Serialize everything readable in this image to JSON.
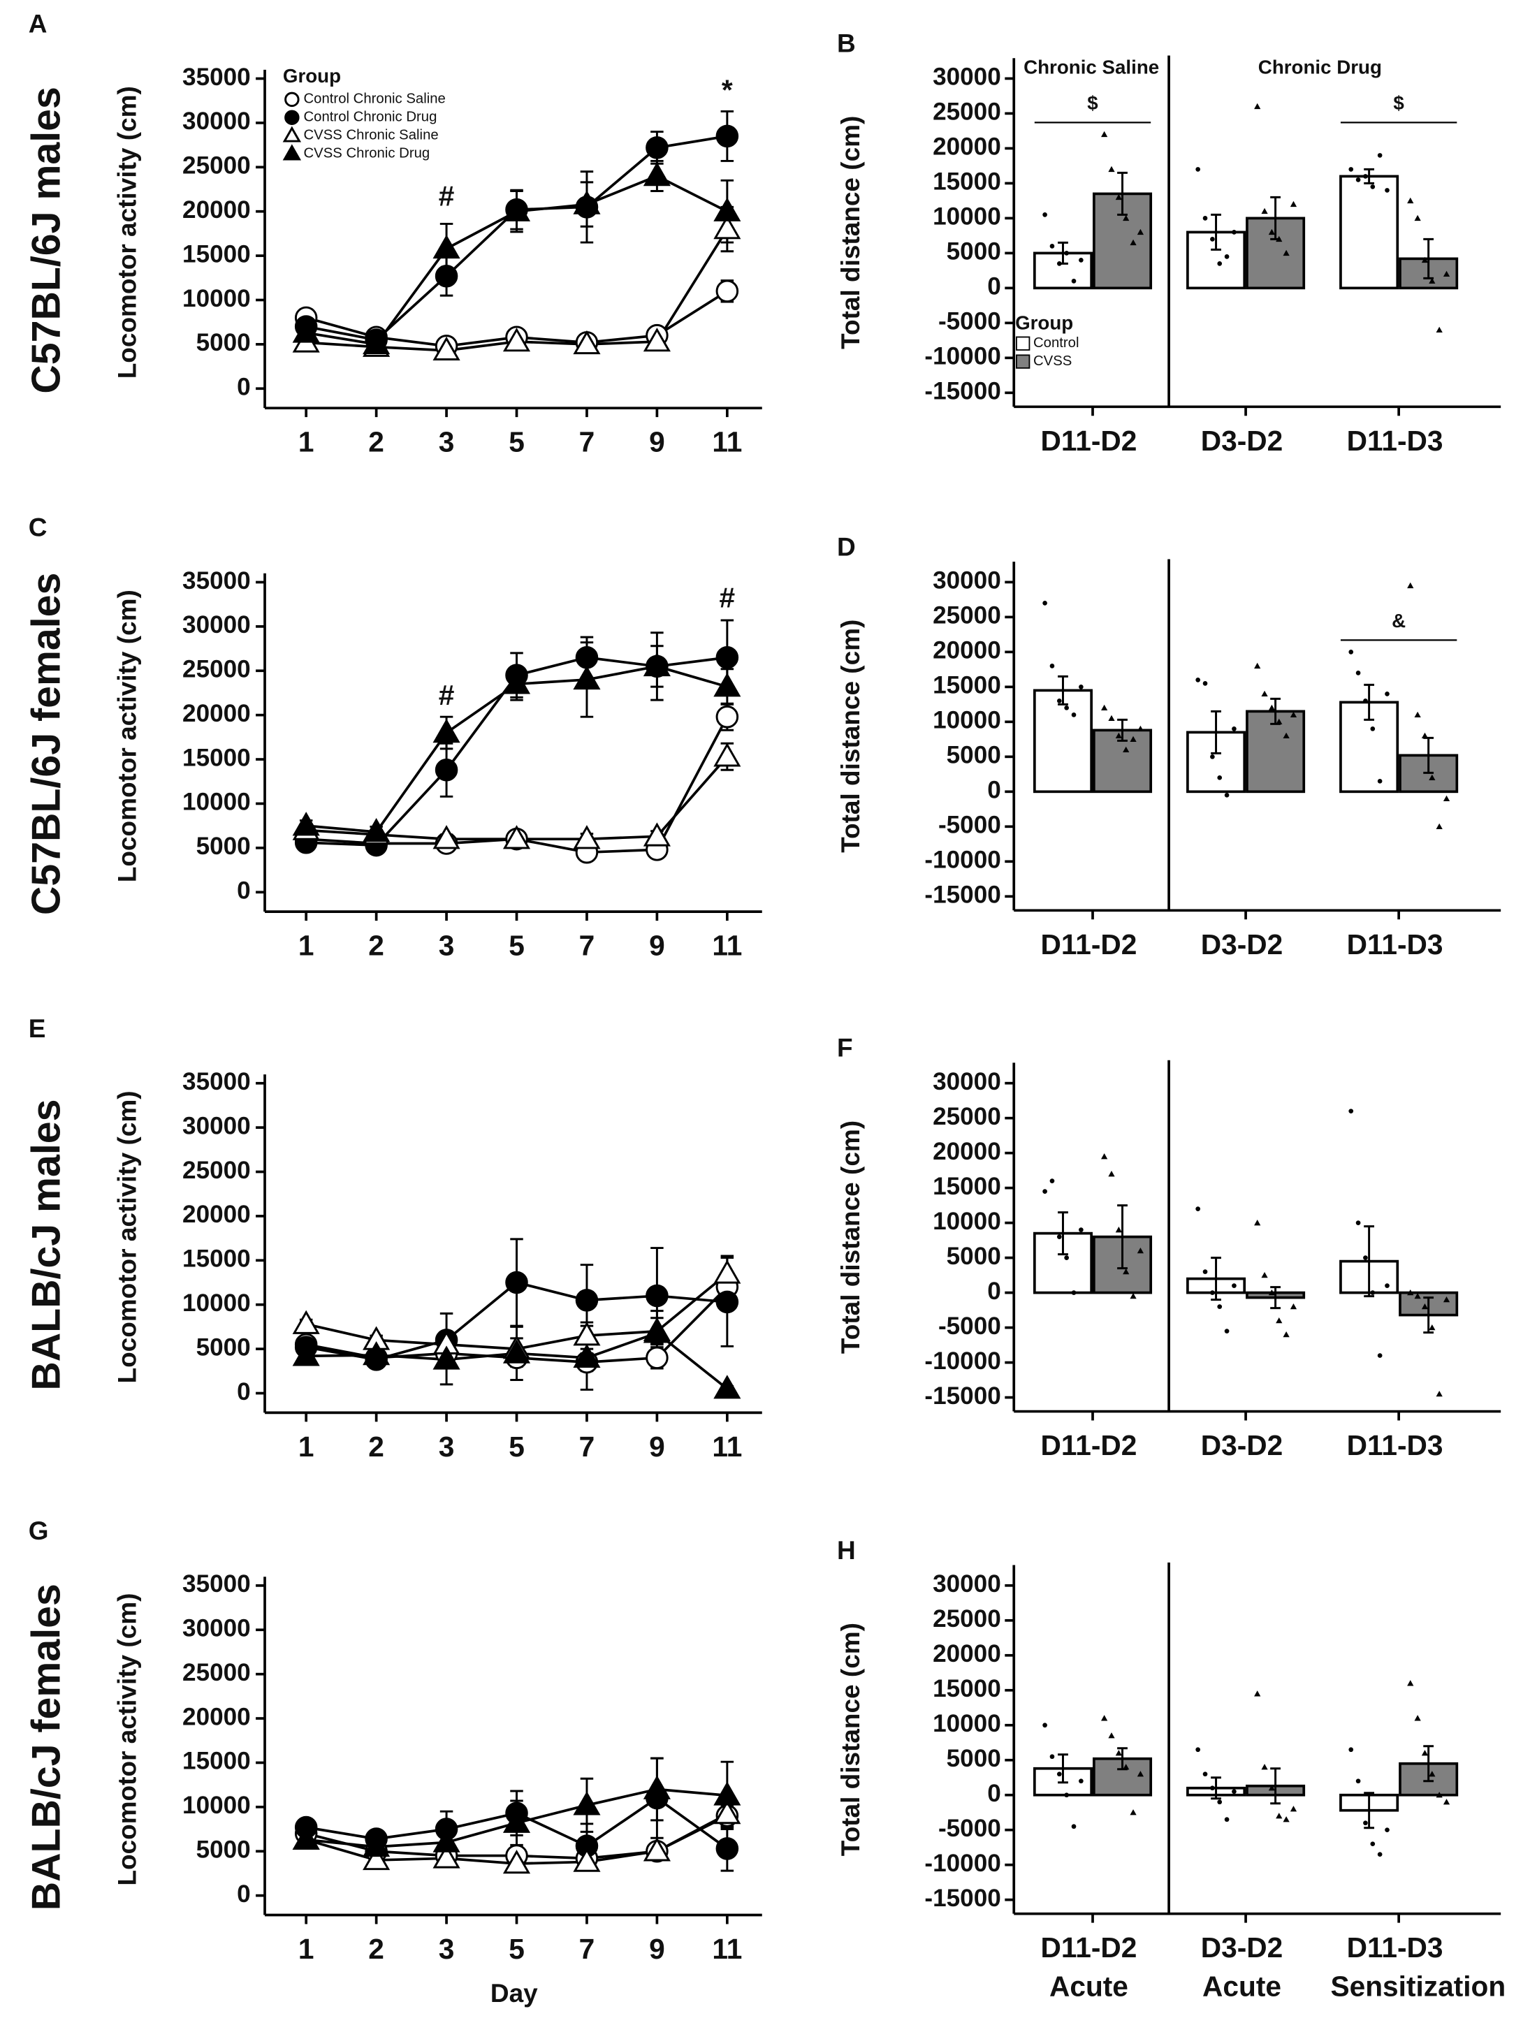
{
  "chart_data": [
    {
      "type": "line",
      "panel": "A",
      "row_label": "C57BL/6J males",
      "ylabel": "Locomotor activity (cm)",
      "categories": [
        "1",
        "2",
        "3",
        "5",
        "7",
        "9",
        "11"
      ],
      "ylim": [
        -2200,
        36000
      ],
      "yticks": [
        0,
        5000,
        10000,
        15000,
        20000,
        25000,
        30000,
        35000
      ],
      "legend": {
        "title": "Group"
      },
      "series": [
        {
          "name": "Control Chronic Saline",
          "color": "#000000",
          "marker": "circle",
          "filled": false,
          "values": [
            8000,
            5800,
            4800,
            5800,
            5200,
            6000,
            11000
          ],
          "errors": [
            600,
            500,
            500,
            700,
            600,
            700,
            1200
          ]
        },
        {
          "name": "Control Chronic Drug",
          "color": "#000000",
          "marker": "circle",
          "filled": true,
          "values": [
            7000,
            5500,
            12700,
            20200,
            20500,
            27200,
            28500
          ],
          "errors": [
            700,
            600,
            2200,
            2200,
            4000,
            1800,
            2800
          ]
        },
        {
          "name": "CVSS Chronic Saline",
          "color": "#000000",
          "marker": "triangle",
          "filled": false,
          "values": [
            5200,
            4700,
            4300,
            5300,
            5000,
            5300,
            18000
          ],
          "errors": [
            500,
            500,
            400,
            500,
            500,
            500,
            2500
          ]
        },
        {
          "name": "CVSS Chronic Drug",
          "color": "#000000",
          "marker": "triangle",
          "filled": true,
          "values": [
            6300,
            5000,
            15800,
            20000,
            20800,
            24000,
            20000
          ],
          "errors": [
            600,
            500,
            2800,
            2300,
            2500,
            1700,
            3500
          ]
        }
      ],
      "annotations": [
        {
          "text": "#",
          "category": "3",
          "y": 21500
        },
        {
          "text": "*",
          "category": "11",
          "y": 33500
        }
      ]
    },
    {
      "type": "bar",
      "panel": "B",
      "ylabel": "Total distance (cm)",
      "categories": [
        "D11-D2",
        "D3-D2",
        "D11-D3"
      ],
      "ylim": [
        -17000,
        32000
      ],
      "yticks": [
        -15000,
        -10000,
        -5000,
        0,
        5000,
        10000,
        15000,
        20000,
        25000,
        30000
      ],
      "section_labels": [
        "Chronic Saline",
        "Chronic Drug"
      ],
      "legend": {
        "title": "Group"
      },
      "series": [
        {
          "name": "Control",
          "color": "#ffffff",
          "values": [
            5000,
            8000,
            16000
          ],
          "errors": [
            1500,
            2500,
            1000
          ],
          "points": [
            [
              10500,
              6000,
              3500,
              5000,
              1000,
              4000
            ],
            [
              17000,
              10000,
              7000,
              3500,
              4500,
              8000
            ],
            [
              17000,
              15500,
              16000,
              14500,
              19000,
              14000
            ]
          ]
        },
        {
          "name": "CVSS",
          "color": "#808080",
          "values": [
            13500,
            10000,
            4200
          ],
          "errors": [
            3000,
            3000,
            2800
          ],
          "points": [
            [
              22000,
              17000,
              13000,
              10000,
              6500,
              8000
            ],
            [
              26000,
              11000,
              8000,
              7000,
              5000,
              12000
            ],
            [
              12500,
              10000,
              4000,
              1000,
              -6000,
              2000
            ]
          ]
        }
      ],
      "significance": [
        {
          "text": "$",
          "category": "D11-D2",
          "y": 23700
        },
        {
          "text": "$",
          "category": "D11-D3",
          "y": 23700
        }
      ]
    },
    {
      "type": "line",
      "panel": "C",
      "row_label": "C57BL/6J females",
      "ylabel": "Locomotor activity (cm)",
      "categories": [
        "1",
        "2",
        "3",
        "5",
        "7",
        "9",
        "11"
      ],
      "ylim": [
        -2200,
        36000
      ],
      "yticks": [
        0,
        5000,
        10000,
        15000,
        20000,
        25000,
        30000,
        35000
      ],
      "series": [
        {
          "name": "Control Chronic Saline",
          "color": "#000000",
          "marker": "circle",
          "filled": false,
          "values": [
            6000,
            5500,
            5500,
            6000,
            4500,
            4800,
            19800
          ],
          "errors": [
            500,
            500,
            500,
            600,
            600,
            500,
            1500
          ]
        },
        {
          "name": "Control Chronic Drug",
          "color": "#000000",
          "marker": "circle",
          "filled": true,
          "values": [
            5600,
            5300,
            13800,
            24500,
            26500,
            25500,
            26500
          ],
          "errors": [
            500,
            500,
            3000,
            2500,
            2300,
            3800,
            4200
          ]
        },
        {
          "name": "CVSS Chronic Saline",
          "color": "#000000",
          "marker": "triangle",
          "filled": false,
          "values": [
            7000,
            6500,
            6000,
            6000,
            6000,
            6300,
            15300
          ],
          "errors": [
            500,
            500,
            500,
            600,
            600,
            600,
            1500
          ]
        },
        {
          "name": "CVSS Chronic Drug",
          "color": "#000000",
          "marker": "triangle",
          "filled": true,
          "values": [
            7500,
            6800,
            18000,
            23500,
            24000,
            25500,
            23200
          ],
          "errors": [
            600,
            600,
            1800,
            1800,
            4200,
            2300,
            2000
          ]
        }
      ],
      "annotations": [
        {
          "text": "#",
          "category": "3",
          "y": 22000
        },
        {
          "text": "#",
          "category": "11",
          "y": 33000
        }
      ]
    },
    {
      "type": "bar",
      "panel": "D",
      "ylabel": "Total distance (cm)",
      "categories": [
        "D11-D2",
        "D3-D2",
        "D11-D3"
      ],
      "ylim": [
        -17000,
        32000
      ],
      "yticks": [
        -15000,
        -10000,
        -5000,
        0,
        5000,
        10000,
        15000,
        20000,
        25000,
        30000
      ],
      "series": [
        {
          "name": "Control",
          "color": "#ffffff",
          "values": [
            14500,
            8500,
            12800
          ],
          "errors": [
            2000,
            3000,
            2500
          ],
          "points": [
            [
              27000,
              18000,
              13000,
              12000,
              11000,
              15000
            ],
            [
              16000,
              15500,
              5000,
              2000,
              -500,
              9000
            ],
            [
              20000,
              17000,
              13000,
              9000,
              1500,
              14000
            ]
          ]
        },
        {
          "name": "CVSS",
          "color": "#808080",
          "values": [
            8800,
            11500,
            5200
          ],
          "errors": [
            1500,
            1800,
            2500
          ],
          "points": [
            [
              12000,
              10500,
              8000,
              6000,
              7500,
              9000
            ],
            [
              18000,
              14000,
              12000,
              10000,
              8000,
              11000
            ],
            [
              29500,
              11000,
              8000,
              2000,
              -5000,
              -1000
            ]
          ]
        }
      ],
      "significance": [
        {
          "text": "&",
          "category": "D11-D3",
          "y": 21700
        }
      ]
    },
    {
      "type": "line",
      "panel": "E",
      "row_label": "BALB/cJ males",
      "ylabel": "Locomotor activity (cm)",
      "categories": [
        "1",
        "2",
        "3",
        "5",
        "7",
        "9",
        "11"
      ],
      "ylim": [
        -2200,
        36000
      ],
      "yticks": [
        0,
        5000,
        10000,
        15000,
        20000,
        25000,
        30000,
        35000
      ],
      "series": [
        {
          "name": "Control Chronic Saline",
          "color": "#000000",
          "marker": "circle",
          "filled": false,
          "values": [
            5500,
            4000,
            4500,
            4000,
            3500,
            4000,
            12000
          ],
          "errors": [
            600,
            500,
            600,
            1000,
            1000,
            1200,
            1500
          ]
        },
        {
          "name": "Control Chronic Drug",
          "color": "#000000",
          "marker": "circle",
          "filled": true,
          "values": [
            5200,
            3800,
            6000,
            12500,
            10500,
            11000,
            10300
          ],
          "errors": [
            600,
            500,
            3000,
            4900,
            4000,
            5400,
            5000
          ]
        },
        {
          "name": "CVSS Chronic Saline",
          "color": "#000000",
          "marker": "triangle",
          "filled": false,
          "values": [
            7800,
            6000,
            5500,
            5000,
            6500,
            7000,
            13500
          ],
          "errors": [
            500,
            500,
            1000,
            1200,
            1500,
            1500,
            2000
          ]
        },
        {
          "name": "CVSS Chronic Drug",
          "color": "#000000",
          "marker": "triangle",
          "filled": true,
          "values": [
            4200,
            4300,
            3800,
            4500,
            4000,
            6800,
            500
          ],
          "errors": [
            500,
            500,
            2800,
            3000,
            3600,
            2500,
            300
          ]
        }
      ]
    },
    {
      "type": "bar",
      "panel": "F",
      "ylabel": "Total distance (cm)",
      "categories": [
        "D11-D2",
        "D3-D2",
        "D11-D3"
      ],
      "ylim": [
        -17000,
        32000
      ],
      "yticks": [
        -15000,
        -10000,
        -5000,
        0,
        5000,
        10000,
        15000,
        20000,
        25000,
        30000
      ],
      "series": [
        {
          "name": "Control",
          "color": "#ffffff",
          "values": [
            8500,
            2000,
            4500
          ],
          "errors": [
            3000,
            3000,
            5000
          ],
          "points": [
            [
              14500,
              16000,
              8000,
              5000,
              0,
              9000
            ],
            [
              12000,
              3000,
              0,
              -2000,
              -5500,
              1000
            ],
            [
              26000,
              10000,
              5000,
              0,
              -9000,
              1000
            ]
          ]
        },
        {
          "name": "CVSS",
          "color": "#808080",
          "values": [
            8000,
            -700,
            -3200
          ],
          "errors": [
            4500,
            1500,
            2500
          ],
          "points": [
            [
              19500,
              17000,
              9000,
              3000,
              -500,
              6000
            ],
            [
              10000,
              2500,
              0,
              -4000,
              -6000,
              -2000
            ],
            [
              0,
              -500,
              -2000,
              -5000,
              -14500,
              -1000
            ]
          ]
        }
      ]
    },
    {
      "type": "line",
      "panel": "G",
      "row_label": "BALB/cJ females",
      "ylabel": "Locomotor activity (cm)",
      "xlabel": "Day",
      "categories": [
        "1",
        "2",
        "3",
        "5",
        "7",
        "9",
        "11"
      ],
      "ylim": [
        -2200,
        36000
      ],
      "yticks": [
        0,
        5000,
        10000,
        15000,
        20000,
        25000,
        30000,
        35000
      ],
      "series": [
        {
          "name": "Control Chronic Saline",
          "color": "#000000",
          "marker": "circle",
          "filled": false,
          "values": [
            7000,
            5000,
            4500,
            4500,
            4200,
            5000,
            9000
          ],
          "errors": [
            600,
            500,
            600,
            700,
            600,
            600,
            1200
          ]
        },
        {
          "name": "Control Chronic Drug",
          "color": "#000000",
          "marker": "circle",
          "filled": true,
          "values": [
            7700,
            6400,
            7500,
            9300,
            5600,
            11000,
            5300
          ],
          "errors": [
            800,
            600,
            2000,
            2500,
            2500,
            4500,
            2500
          ]
        },
        {
          "name": "CVSS Chronic Saline",
          "color": "#000000",
          "marker": "triangle",
          "filled": false,
          "values": [
            6300,
            4000,
            4200,
            3600,
            3800,
            5000,
            9200
          ],
          "errors": [
            500,
            400,
            500,
            500,
            500,
            600,
            1500
          ]
        },
        {
          "name": "CVSS Chronic Drug",
          "color": "#000000",
          "marker": "triangle",
          "filled": true,
          "values": [
            6300,
            5500,
            6000,
            8200,
            10200,
            12000,
            11300
          ],
          "errors": [
            600,
            600,
            1500,
            2500,
            3000,
            3500,
            3800
          ]
        }
      ]
    },
    {
      "type": "bar",
      "panel": "H",
      "ylabel": "Total distance (cm)",
      "categories": [
        "D11-D2",
        "D3-D2",
        "D11-D3"
      ],
      "sublabels": [
        "Acute",
        "Acute",
        "Sensitization"
      ],
      "ylim": [
        -17000,
        32000
      ],
      "yticks": [
        -15000,
        -10000,
        -5000,
        0,
        5000,
        10000,
        15000,
        20000,
        25000,
        30000
      ],
      "series": [
        {
          "name": "Control",
          "color": "#ffffff",
          "values": [
            3800,
            1000,
            -2200
          ],
          "errors": [
            2000,
            1500,
            2500
          ],
          "points": [
            [
              10000,
              5500,
              3000,
              0,
              -4500,
              2000
            ],
            [
              6500,
              3000,
              1000,
              -1000,
              -3500,
              500
            ],
            [
              6500,
              2000,
              -4000,
              -7000,
              -8500,
              -5000
            ]
          ]
        },
        {
          "name": "CVSS",
          "color": "#808080",
          "values": [
            5200,
            1300,
            4500
          ],
          "errors": [
            1500,
            2500,
            2500
          ],
          "points": [
            [
              11000,
              8500,
              6000,
              4000,
              -2500,
              3000
            ],
            [
              14500,
              4000,
              1000,
              -3000,
              -3500,
              -2000
            ],
            [
              16000,
              11000,
              6000,
              3000,
              0,
              -1000
            ]
          ]
        }
      ]
    }
  ]
}
